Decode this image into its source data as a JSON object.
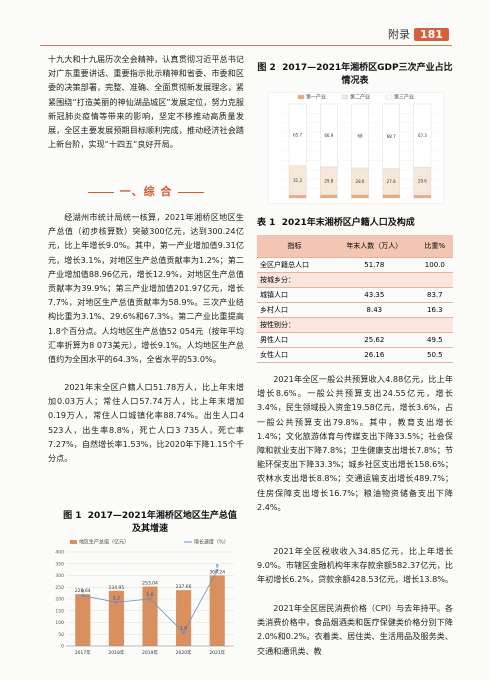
{
  "header": {
    "label": "附录",
    "page": "181"
  },
  "left_top": "十九大和十九届历次全会精神，认真贯彻习近平总书记对广东重要讲话、重要指示批示精神和省委、市委和区委的决策部署，完整、准确、全面贯彻新发展理念，紧紧围绕“打造美丽的神仙湖品城区”发展定位，努力克服新冠肺炎疫情等带来的影响，坚定不移推动高质量发展，全区主要发展预期目标顺利完成，推动经济社会踏上新台阶，实现“十四五”良好开局。",
  "section_title": "一、综  合",
  "para1": "经湖州市统计局统一核算，2021年湘桥区地区生产总值（初步核算数）突破300亿元，达到300.24亿元，比上年增长9.0%。其中，第一产业增加值9.31亿元，增长3.1%，对地区生产总值贡献率为1.2%；第二产业增加值88.96亿元，增长12.9%，对地区生产总值贡献率为39.9%；第三产业增加值201.97亿元，增长7.7%，对地区生产总值贡献率为58.9%。三次产业结构比重为3.1%、29.6%和67.3%，第二产业比重提高1.8个百分点。人均地区生产总值52 054元（按年平均汇率折算为8 073美元），增长9.1%。人均地区生产总值约为全国水平的64.3%，全省水平的53.0%。",
  "para2": "2021年末全区户籍人口51.78万人，比上年末增加0.03万人；常住人口57.74万人，比上年末增加0.19万人，常住人口城镇化率88.74%。出生人口4 523人，出生率8.8%，死亡人口3 735人，死亡率7.27%，自然增长率1.53%，比2020年下降1.15个千分点。",
  "fig1": {
    "label": "图 1",
    "title": "2017—2021年湘桥区地区生产总值及其增速"
  },
  "fig2": {
    "label": "图 2",
    "title": "2017—2021年湘桥区GDP三次产业占比情况表"
  },
  "table": {
    "label": "表 1",
    "title": "2021年末湘桥区户籍人口及构成",
    "headers": [
      "指标",
      "年末人数（万人）",
      "比重%"
    ],
    "rows": [
      {
        "name": "全区户籍总人口",
        "value": "51.78",
        "share": "100.0",
        "cat": false
      },
      {
        "name": "按城乡分：",
        "value": "",
        "share": "",
        "cat": true
      },
      {
        "name": "城镇人口",
        "value": "43.35",
        "share": "83.7",
        "cat": false
      },
      {
        "name": "乡村人口",
        "value": "8.43",
        "share": "16.3",
        "cat": false
      },
      {
        "name": "按性别分：",
        "value": "",
        "share": "",
        "cat": true
      },
      {
        "name": "男性人口",
        "value": "25.62",
        "share": "49.5",
        "cat": false
      },
      {
        "name": "女性人口",
        "value": "26.16",
        "share": "50.5",
        "cat": false
      }
    ]
  },
  "para3": "2021年全区一般公共预算收入4.88亿元，比上年增长8.6%。一般公共预算支出24.55亿元，增长3.4%，民生领域投入资金19.58亿元，增长3.6%，占一般公共预算支出79.8%。其中，教育支出增长1.4%；文化旅游体育与传媒支出下降33.5%；社会保障和就业支出下降7.8%；卫生健康支出增长7.8%；节能环保支出下降33.3%；城乡社区支出增长158.6%；农林水支出增长8.8%；交通运输支出增长489.7%；住房保障支出增长16.7%；粮油物资储备支出下降2.4%。",
  "para4": "2021年全区税收收入34.85亿元，比上年增长9.0%。市辖区金融机构年末存款余额582.37亿元，比年初增长6.2%，贷款余额428.53亿元，增长13.8%。",
  "para5": "2021年全区居民消费价格（CPI）与去年持平。各类消费价格中，食品烟酒类和医疗保健类价格分别下降2.0%和0.2%。衣着类、居住类、生活用品及服务类、交通和通讯类、教",
  "chart_data": [
    {
      "type": "bar",
      "title": "2017—2021年湘桥区地区生产总值及其增速",
      "categories": [
        "2017年",
        "2018年",
        "2019年",
        "2020年",
        "2021年"
      ],
      "series": [
        {
          "name": "地区生产总值（亿元）",
          "values": [
            220.64,
            234.95,
            253.04,
            237.66,
            300.24
          ],
          "kind": "bar"
        },
        {
          "name": "增长速度（%）",
          "values": [
            6.0,
            5.2,
            5.6,
            1.6,
            9.0
          ],
          "kind": "line"
        }
      ],
      "ylim": [
        0,
        400
      ],
      "y_ticks": [
        "0",
        "50",
        "100",
        "150",
        "200",
        "250",
        "300",
        "350",
        "400"
      ],
      "colors": {
        "bar": "#d98f5e",
        "line": "#6b8fc7"
      }
    },
    {
      "type": "bar",
      "title": "2017—2021年湘桥区GDP三次产业占比情况表",
      "legend": [
        "第一产业",
        "第二产业",
        "第三产业"
      ],
      "stacked": true,
      "series": [
        {
          "name": "第一产业",
          "values": [
            3.1,
            3.3,
            3.4,
            3.5,
            3.1
          ]
        },
        {
          "name": "第二产业",
          "values": [
            31.2,
            29.8,
            28.6,
            27.8,
            29.6
          ]
        },
        {
          "name": "第三产业",
          "values": [
            65.7,
            66.9,
            68.0,
            68.7,
            67.3
          ]
        }
      ],
      "colors": {
        "primary": "#e9a97c",
        "secondary": "#f6e8d8",
        "tertiary": "#ffffff"
      }
    }
  ]
}
